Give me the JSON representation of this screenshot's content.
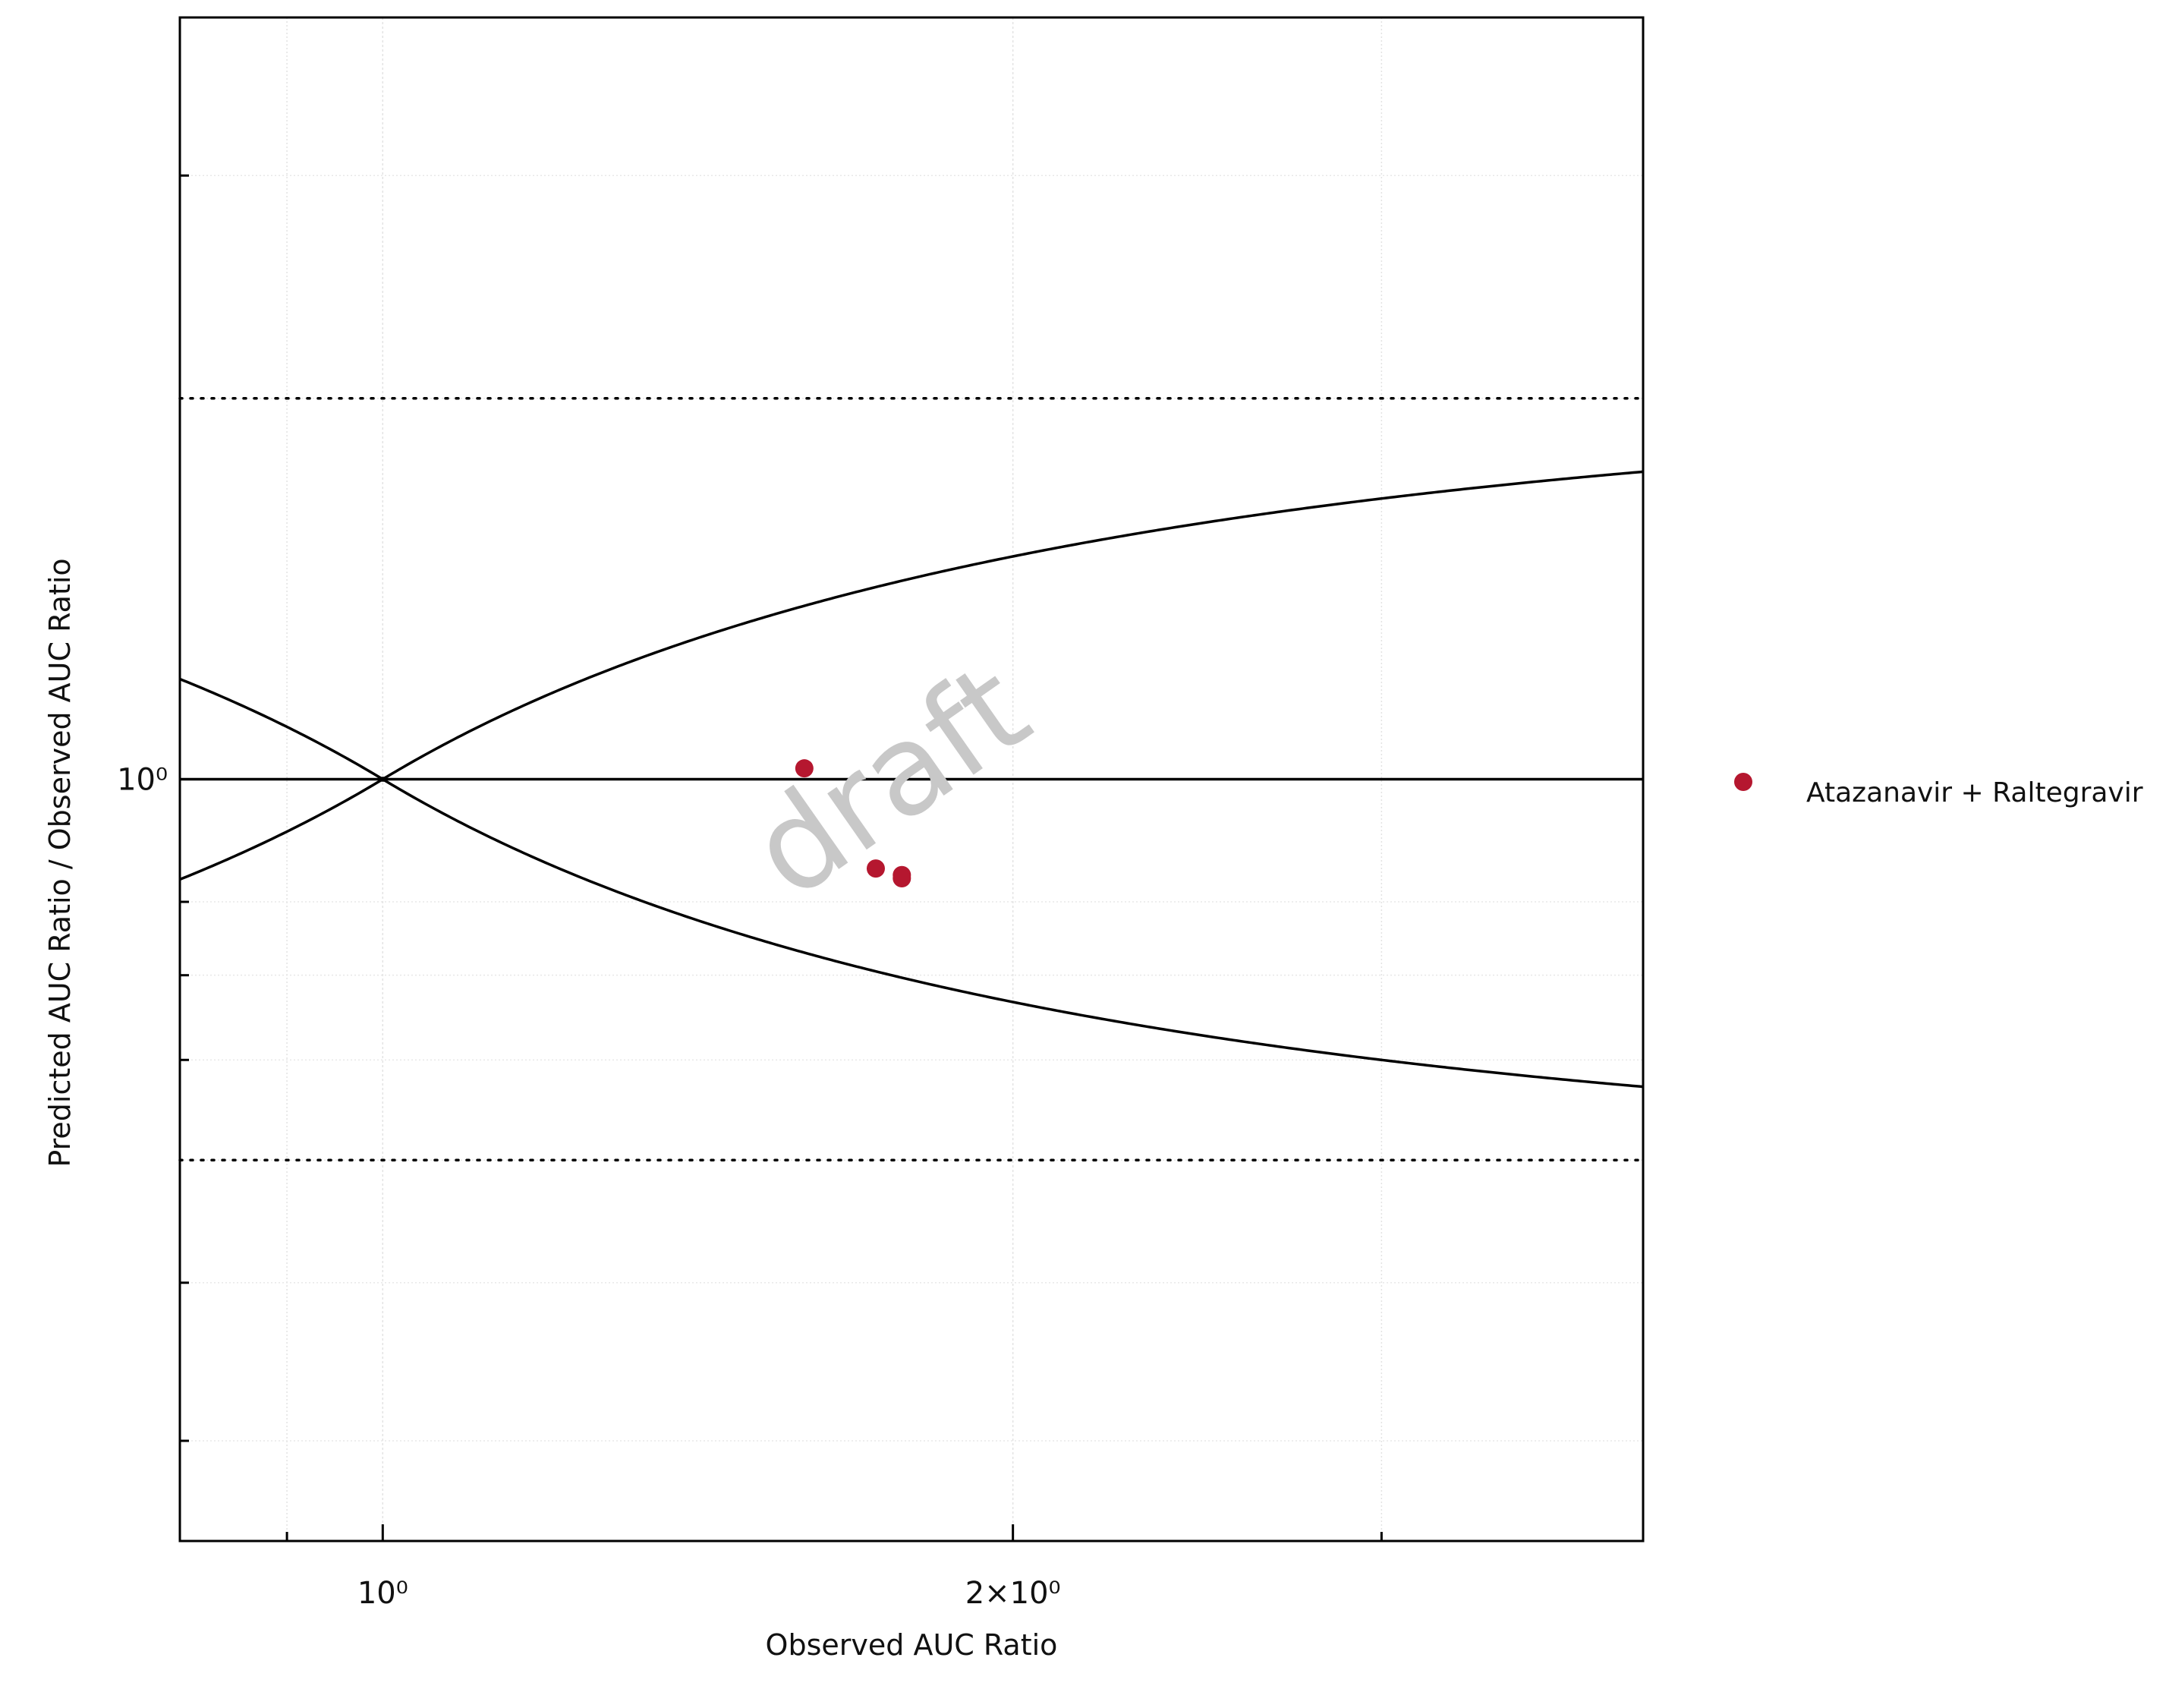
{
  "chart_data": {
    "type": "scatter",
    "xlabel": "Observed AUC Ratio",
    "ylabel": "Predicted AUC Ratio / Observed AUC Ratio",
    "x_scale": "log",
    "y_scale": "log",
    "xlim": [
      0.8,
      4.0
    ],
    "ylim": [
      0.25,
      4.0
    ],
    "x_tick_labels": [
      {
        "value": 1,
        "text": "10⁰"
      },
      {
        "value": 2,
        "text": "2×10⁰"
      }
    ],
    "y_tick_labels": [
      {
        "value": 1,
        "text": "10⁰"
      }
    ],
    "grid": true,
    "reference_lines": {
      "unity": 1,
      "dotted_limits": [
        0.5,
        2
      ]
    },
    "series": [
      {
        "name": "Atazanavir + Raltegravir",
        "color": "#b5172f",
        "x": [
          1.59,
          1.72,
          1.77,
          1.77
        ],
        "y": [
          1.02,
          0.85,
          0.84,
          0.835
        ]
      }
    ],
    "legend_position": "right",
    "watermark": "draft"
  }
}
